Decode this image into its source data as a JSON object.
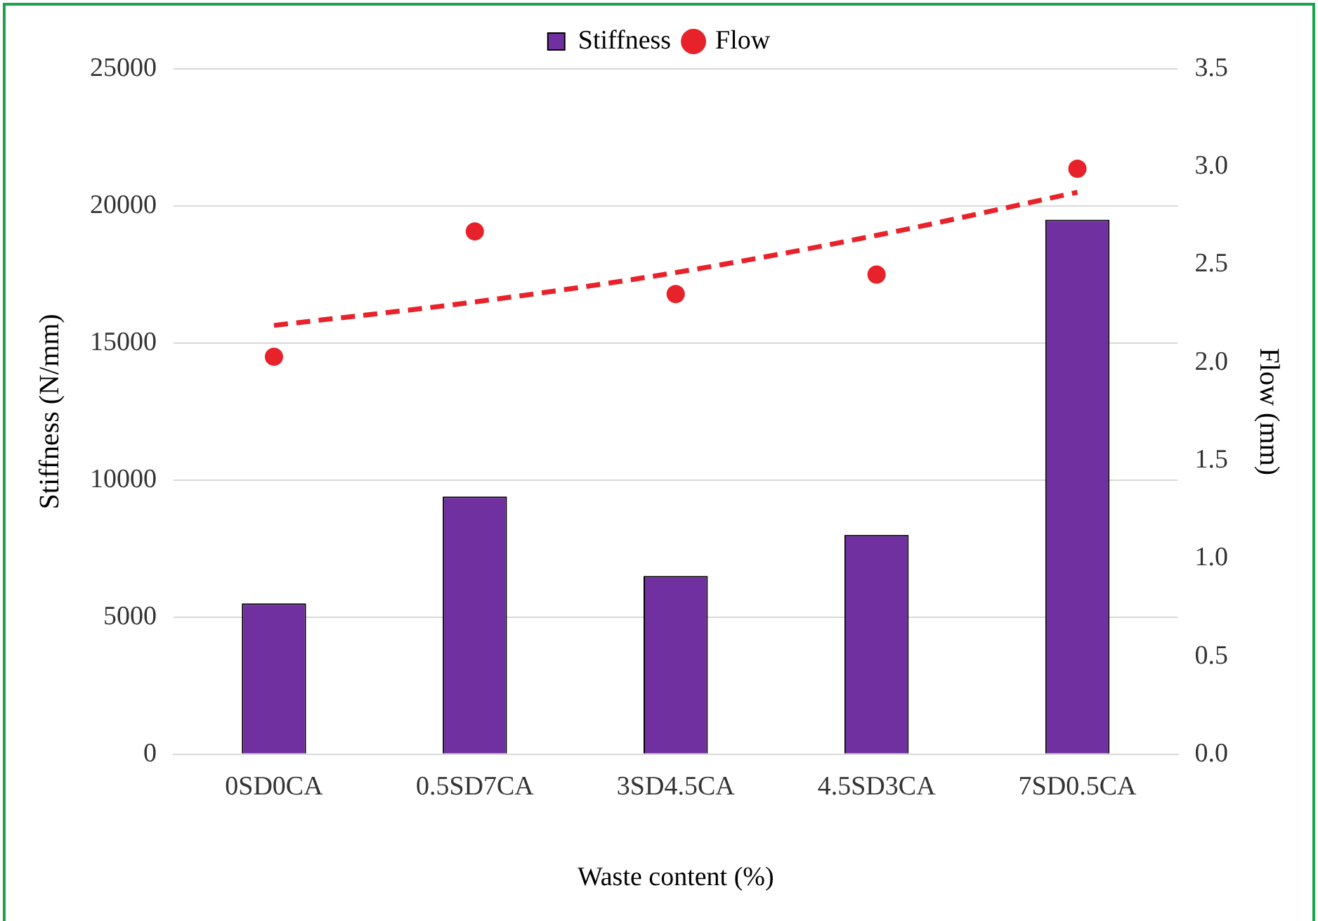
{
  "chart_data": {
    "type": "bar",
    "xlabel": "Waste content (%)",
    "ylabel": "Stiffness (N/mm)",
    "y2label": "Flow (mm)",
    "categories": [
      "0SD0CA",
      "0.5SD7CA",
      "3SD4.5CA",
      "4.5SD3CA",
      "7SD0.5CA"
    ],
    "series": [
      {
        "name": "Stiffness",
        "color": "#7030a0",
        "values": [
          5500,
          9400,
          6500,
          8000,
          19500
        ]
      },
      {
        "name": "Flow",
        "type": "scatter",
        "axis": "y2",
        "color": "#e8222a",
        "marker": "circle",
        "values": [
          2.03,
          2.67,
          2.35,
          2.45,
          2.99
        ]
      },
      {
        "type": "line",
        "axis": "y2",
        "color": "#e8222a",
        "line_style": "dashed",
        "marker": "none",
        "values": [
          2.19,
          2.31,
          2.46,
          2.65,
          2.87
        ]
      }
    ],
    "ylim": [
      0,
      25000
    ],
    "yticks": [
      0,
      5000,
      10000,
      15000,
      20000,
      25000
    ],
    "y2lim": [
      0,
      3.5
    ],
    "y2ticks": [
      {
        "value": 0,
        "label": "0.0"
      },
      {
        "value": 0.5,
        "label": "0.5"
      },
      {
        "value": 1,
        "label": "1.0"
      },
      {
        "value": 1.5,
        "label": "1.5"
      },
      {
        "value": 2,
        "label": "2.0"
      },
      {
        "value": 2.5,
        "label": "2.5"
      },
      {
        "value": 3,
        "label": "3.0"
      },
      {
        "value": 3.5,
        "label": "3.5"
      }
    ],
    "grid": "y",
    "legend": "top"
  }
}
